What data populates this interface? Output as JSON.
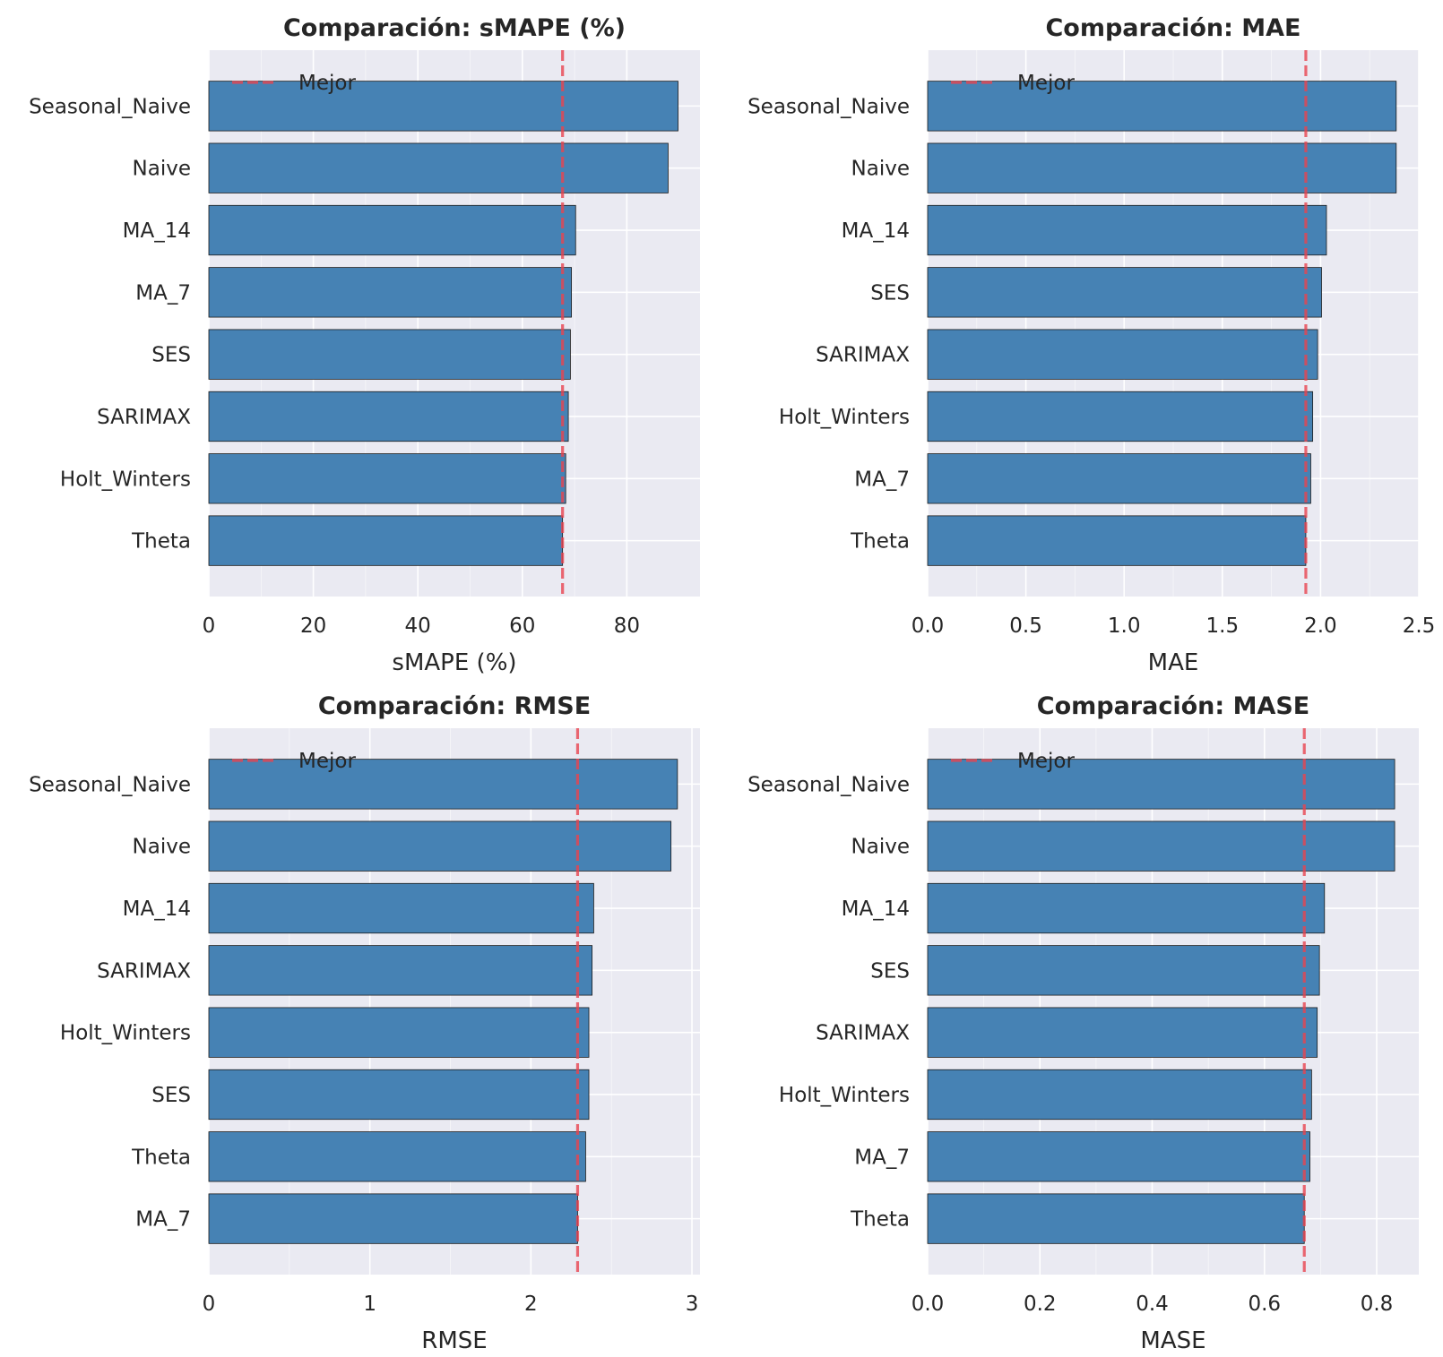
{
  "chart_data": [
    {
      "type": "bar",
      "orientation": "horizontal",
      "title": "Comparación: sMAPE (%)",
      "xlabel": "sMAPE (%)",
      "ylabel": "",
      "categories": [
        "Seasonal_Naive",
        "Naive",
        "MA_14",
        "MA_7",
        "SES",
        "SARIMAX",
        "Holt_Winters",
        "Theta"
      ],
      "values": [
        89.8,
        87.9,
        70.2,
        69.4,
        69.2,
        68.8,
        68.3,
        67.7
      ],
      "xlim": [
        0,
        94
      ],
      "xticks": [
        0,
        20,
        40,
        60,
        80
      ],
      "xtick_labels": [
        "0",
        "20",
        "40",
        "60",
        "80"
      ],
      "reference_line": {
        "label": "Mejor",
        "value": 67.7
      },
      "grid": true,
      "legend": "top-left",
      "bar_color": "#4682B4",
      "line_color": "#E8434F"
    },
    {
      "type": "bar",
      "orientation": "horizontal",
      "title": "Comparación: MAE",
      "xlabel": "MAE",
      "ylabel": "",
      "categories": [
        "Seasonal_Naive",
        "Naive",
        "MA_14",
        "SES",
        "SARIMAX",
        "Holt_Winters",
        "MA_7",
        "Theta"
      ],
      "values": [
        2.385,
        2.385,
        2.03,
        2.005,
        1.985,
        1.96,
        1.95,
        1.925
      ],
      "xlim": [
        0,
        2.5
      ],
      "xticks": [
        0,
        0.5,
        1.0,
        1.5,
        2.0,
        2.5
      ],
      "xtick_labels": [
        "0.0",
        "0.5",
        "1.0",
        "1.5",
        "2.0",
        "2.5"
      ],
      "reference_line": {
        "label": "Mejor",
        "value": 1.925
      },
      "grid": true,
      "legend": "top-left",
      "bar_color": "#4682B4",
      "line_color": "#E8434F"
    },
    {
      "type": "bar",
      "orientation": "horizontal",
      "title": "Comparación: RMSE",
      "xlabel": "RMSE",
      "ylabel": "",
      "categories": [
        "Seasonal_Naive",
        "Naive",
        "MA_14",
        "SARIMAX",
        "Holt_Winters",
        "SES",
        "Theta",
        "MA_7"
      ],
      "values": [
        2.91,
        2.87,
        2.39,
        2.38,
        2.36,
        2.36,
        2.34,
        2.29
      ],
      "xlim": [
        0,
        3.05
      ],
      "xticks": [
        0,
        1,
        2,
        3
      ],
      "xtick_labels": [
        "0",
        "1",
        "2",
        "3"
      ],
      "reference_line": {
        "label": "Mejor",
        "value": 2.29
      },
      "grid": true,
      "legend": "top-left",
      "bar_color": "#4682B4",
      "line_color": "#E8434F"
    },
    {
      "type": "bar",
      "orientation": "horizontal",
      "title": "Comparación: MASE",
      "xlabel": "MASE",
      "ylabel": "",
      "categories": [
        "Seasonal_Naive",
        "Naive",
        "MA_14",
        "SES",
        "SARIMAX",
        "Holt_Winters",
        "MA_7",
        "Theta"
      ],
      "values": [
        0.832,
        0.832,
        0.707,
        0.698,
        0.694,
        0.684,
        0.681,
        0.671
      ],
      "xlim": [
        0,
        0.875
      ],
      "xticks": [
        0,
        0.2,
        0.4,
        0.6,
        0.8
      ],
      "xtick_labels": [
        "0.0",
        "0.2",
        "0.4",
        "0.6",
        "0.8"
      ],
      "reference_line": {
        "label": "Mejor",
        "value": 0.671
      },
      "grid": true,
      "legend": "top-left",
      "bar_color": "#4682B4",
      "line_color": "#E8434F"
    }
  ]
}
